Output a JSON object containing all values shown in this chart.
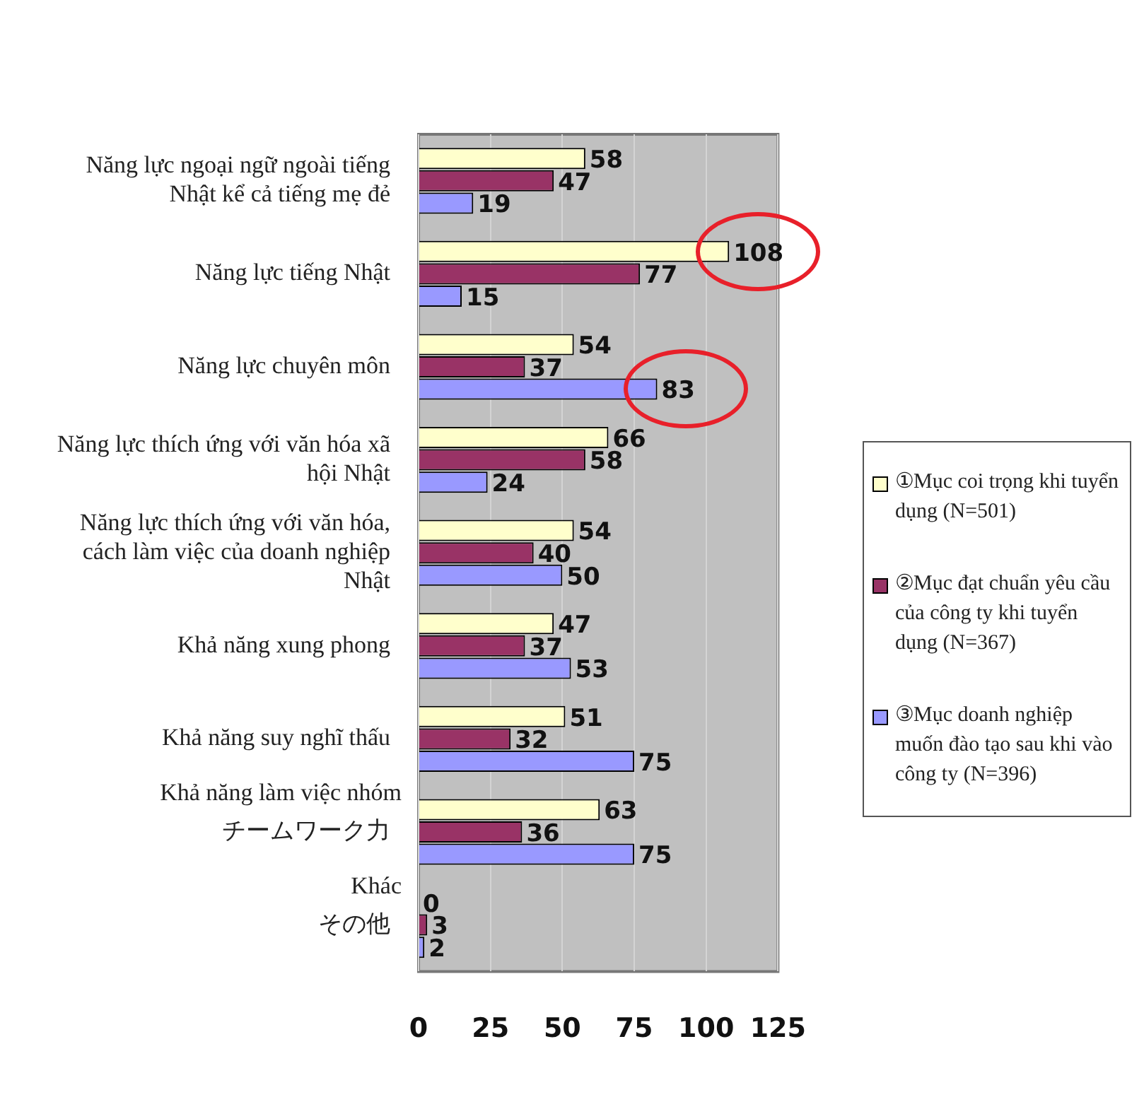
{
  "chart_data": {
    "type": "bar",
    "orientation": "horizontal",
    "categories": [
      "Năng lực ngoại ngữ ngoài tiếng Nhật kể cả tiếng mẹ đẻ",
      "Năng lực tiếng Nhật",
      "Năng lực chuyên môn",
      "Năng lực thích ứng với văn hóa xã hội Nhật",
      "Năng lực thích ứng với văn hóa, cách làm việc của doanh nghiệp Nhật",
      "Khả năng xung phong",
      "Khả năng suy nghĩ thấu",
      "チームワーク力",
      "その他"
    ],
    "series": [
      {
        "name": "①Mục coi trọng khi tuyển dụng (N=501)",
        "color": "#ffffcc",
        "values": [
          58,
          108,
          54,
          66,
          54,
          47,
          51,
          63,
          0
        ]
      },
      {
        "name": "②Mục đạt chuẩn yêu cầu của công ty khi tuyển dụng (N=367)",
        "color": "#993366",
        "values": [
          47,
          77,
          37,
          58,
          40,
          37,
          32,
          36,
          3
        ]
      },
      {
        "name": "③Mục doanh nghiệp muốn đào tạo sau khi vào công ty (N=396)",
        "color": "#9999ff",
        "values": [
          19,
          15,
          83,
          24,
          50,
          53,
          75,
          75,
          2
        ]
      }
    ],
    "annotations": [
      "Khả năng làm việc nhóm",
      "Khác"
    ],
    "xlim": [
      0,
      125
    ],
    "xticks": [
      0,
      25,
      50,
      75,
      100,
      125
    ],
    "grid": "x",
    "legend": "right",
    "data_labels": true
  }
}
